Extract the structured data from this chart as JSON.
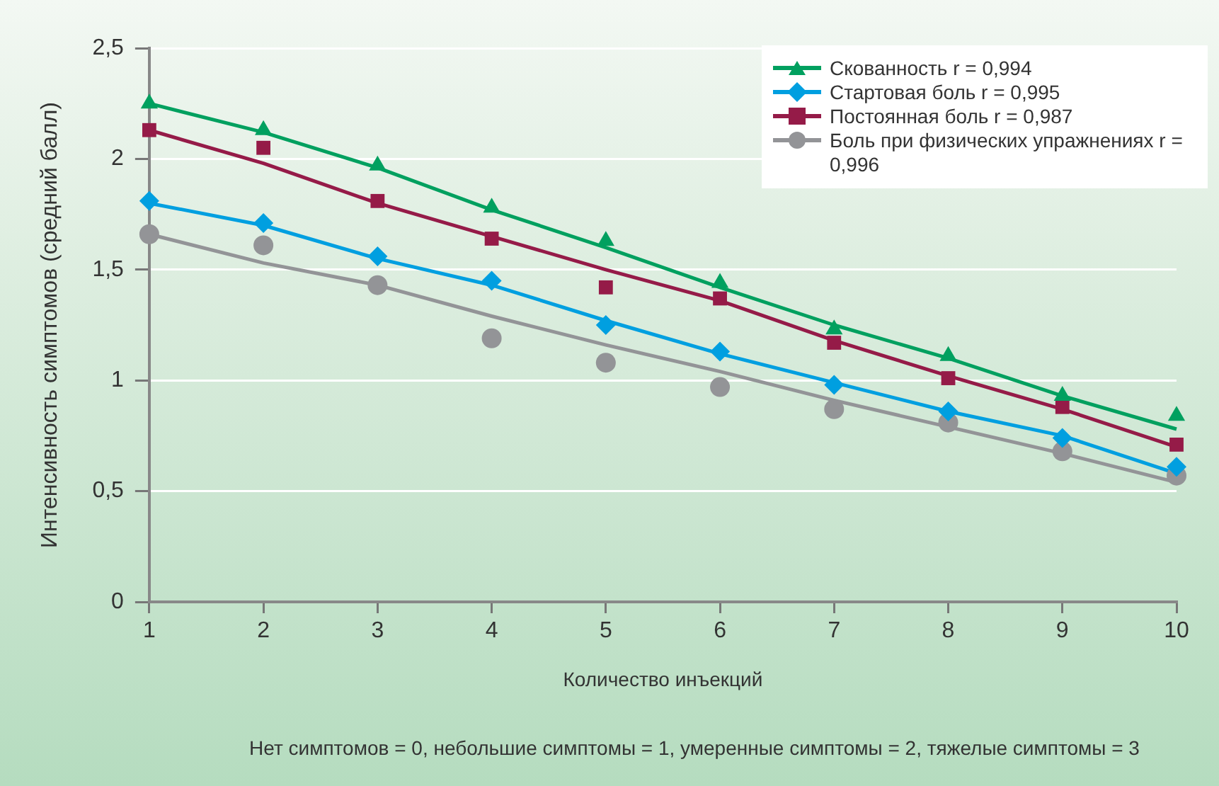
{
  "chart_data": {
    "type": "scatter",
    "xlabel": "Количество инъекций",
    "ylabel": "Интенсивность симптомов (средний балл)",
    "annotations": [
      "Нет симптомов = 0, небольшие симптомы = 1, умеренные симптомы = 2, тяжелые симптомы = 3"
    ],
    "x": [
      1,
      2,
      3,
      4,
      5,
      6,
      7,
      8,
      9,
      10
    ],
    "series": [
      {
        "name": "Скованность r = 0,994",
        "color": "#00a05f",
        "marker": "triangle",
        "values": [
          2.25,
          2.13,
          1.97,
          1.78,
          1.63,
          1.44,
          1.23,
          1.11,
          0.93,
          0.84
        ]
      },
      {
        "name": "Стартовая боль r = 0,995",
        "color": "#009fe0",
        "marker": "diamond",
        "values": [
          1.81,
          1.71,
          1.56,
          1.45,
          1.25,
          1.13,
          0.98,
          0.86,
          0.74,
          0.61
        ]
      },
      {
        "name": "Постоянная боль r = 0,987",
        "color": "#951b48",
        "marker": "square",
        "values": [
          2.13,
          2.05,
          1.81,
          1.64,
          1.42,
          1.37,
          1.17,
          1.01,
          0.88,
          0.71
        ]
      },
      {
        "name": "Боль при физических упражнениях r = 0,996",
        "color": "#939497",
        "marker": "circle",
        "values": [
          1.66,
          1.61,
          1.43,
          1.19,
          1.08,
          0.97,
          0.87,
          0.81,
          0.68,
          0.57
        ]
      },
      {
        "type": "line",
        "color": "#00a05f",
        "marker": "none",
        "values": [
          2.25,
          2.12,
          1.96,
          1.77,
          1.6,
          1.42,
          1.25,
          1.1,
          0.93,
          0.78
        ]
      },
      {
        "type": "line",
        "color": "#009fe0",
        "marker": "none",
        "values": [
          1.8,
          1.7,
          1.55,
          1.43,
          1.27,
          1.12,
          0.99,
          0.86,
          0.75,
          0.58
        ]
      },
      {
        "type": "line",
        "color": "#951b48",
        "marker": "none",
        "values": [
          2.13,
          1.98,
          1.8,
          1.65,
          1.5,
          1.36,
          1.18,
          1.02,
          0.87,
          0.7
        ]
      },
      {
        "type": "line",
        "color": "#939497",
        "marker": "none",
        "values": [
          1.66,
          1.53,
          1.43,
          1.29,
          1.16,
          1.04,
          0.91,
          0.79,
          0.67,
          0.54
        ]
      }
    ],
    "xlim": [
      1,
      10
    ],
    "xticks": [
      1,
      2,
      3,
      4,
      5,
      6,
      7,
      8,
      9,
      10
    ],
    "ylim": [
      0,
      2.5
    ],
    "yticks": [
      0,
      {
        "value": 0.5,
        "label": "0,5"
      },
      1,
      {
        "value": 1.5,
        "label": "1,5"
      },
      2,
      {
        "value": 2.5,
        "label": "2,5"
      }
    ],
    "grid": "y",
    "legend": "top right"
  }
}
